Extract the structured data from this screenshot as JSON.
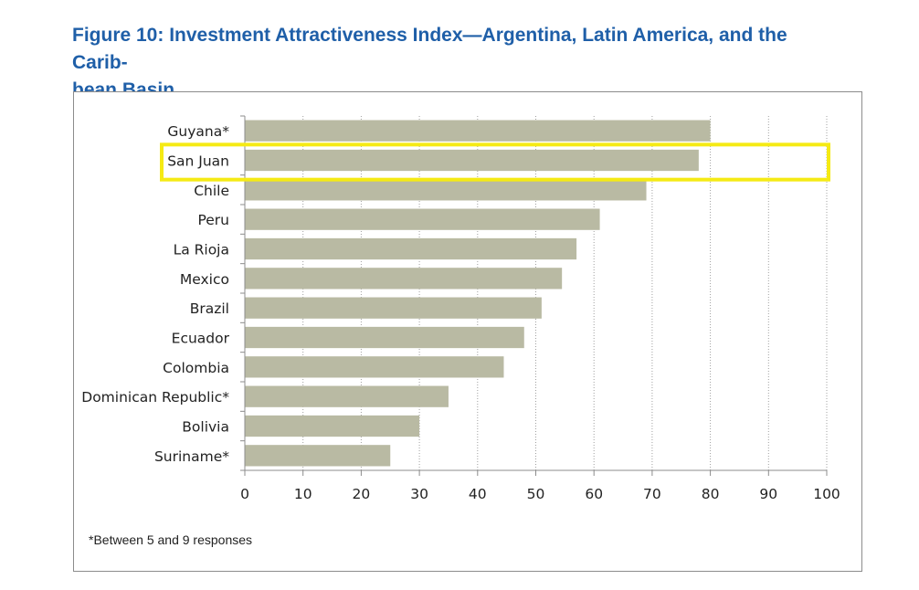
{
  "figure": {
    "title": "Figure 10: Investment Attractiveness Index—Argentina, Latin America, and the Carib-bean Basin",
    "title_lines": [
      "Figure 10: Investment Attractiveness Index—Argentina, Latin America, and the Carib-",
      "bean Basin"
    ],
    "footnote": "*Between 5 and 9 responses",
    "highlighted_category": "San Juan"
  },
  "colors": {
    "title": "#1f5fa8",
    "bar": "#b9baa3",
    "highlight_box": "#f5ea14",
    "gridline": "#a0a0a0",
    "axis": "#8c8c8c",
    "text": "#222222"
  },
  "chart_data": {
    "type": "bar",
    "orientation": "horizontal",
    "title": "Investment Attractiveness Index—Argentina, Latin America, and the Caribbean Basin",
    "xlabel": "",
    "ylabel": "",
    "categories": [
      "Guyana*",
      "San Juan",
      "Chile",
      "Peru",
      "La Rioja",
      "Mexico",
      "Brazil",
      "Ecuador",
      "Colombia",
      "Dominican Republic*",
      "Bolivia",
      "Suriname*"
    ],
    "values": [
      80,
      78,
      69,
      61,
      57,
      54.5,
      51,
      48,
      44.5,
      35,
      30,
      25
    ],
    "xlim": [
      0,
      100
    ],
    "xticks": [
      0,
      10,
      20,
      30,
      40,
      50,
      60,
      70,
      80,
      90,
      100
    ],
    "grid": "vertical dotted"
  }
}
